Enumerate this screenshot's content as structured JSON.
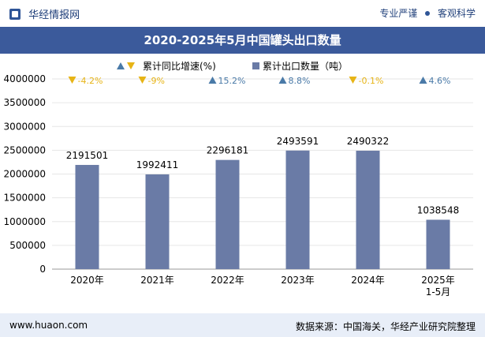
{
  "header": {
    "brand": "华经情报网",
    "right_left": "专业严谨",
    "right_right": "客观科学"
  },
  "title": "2020-2025年5月中国罐头出口数量",
  "legend": {
    "growth": "累计同比增速(%)",
    "bar": "累计出口数量（吨）"
  },
  "footer": {
    "left": "www.huaon.com",
    "right": "数据来源：中国海关，华经产业研究院整理"
  },
  "colors": {
    "bar": "#6a7ba6",
    "up": "#4a7aa8",
    "down": "#e7b416",
    "title_bg": "#3b5a9b",
    "footer_bg": "#e8eef8"
  },
  "chart_data": {
    "type": "bar",
    "title": "2020-2025年5月中国罐头出口数量",
    "categories": [
      "2020年",
      "2021年",
      "2022年",
      "2023年",
      "2024年",
      "2025年\n1-5月"
    ],
    "series": [
      {
        "name": "累计出口数量（吨）",
        "values": [
          2191501,
          1992411,
          2296181,
          2493591,
          2490322,
          1038548
        ]
      },
      {
        "name": "累计同比增速(%)",
        "values": [
          -4.2,
          -9,
          15.2,
          8.8,
          -0.1,
          4.6
        ],
        "labels": [
          "-4.2%",
          "-9%",
          "15.2%",
          "8.8%",
          "-0.1%",
          "4.6%"
        ],
        "directions": [
          "down",
          "down",
          "up",
          "up",
          "down",
          "up"
        ]
      }
    ],
    "yticks": [
      "0",
      "500000",
      "1000000",
      "1500000",
      "2000000",
      "2500000",
      "3000000",
      "3500000",
      "4000000"
    ],
    "ylim": [
      0,
      4000000
    ],
    "legend_position": "top"
  }
}
